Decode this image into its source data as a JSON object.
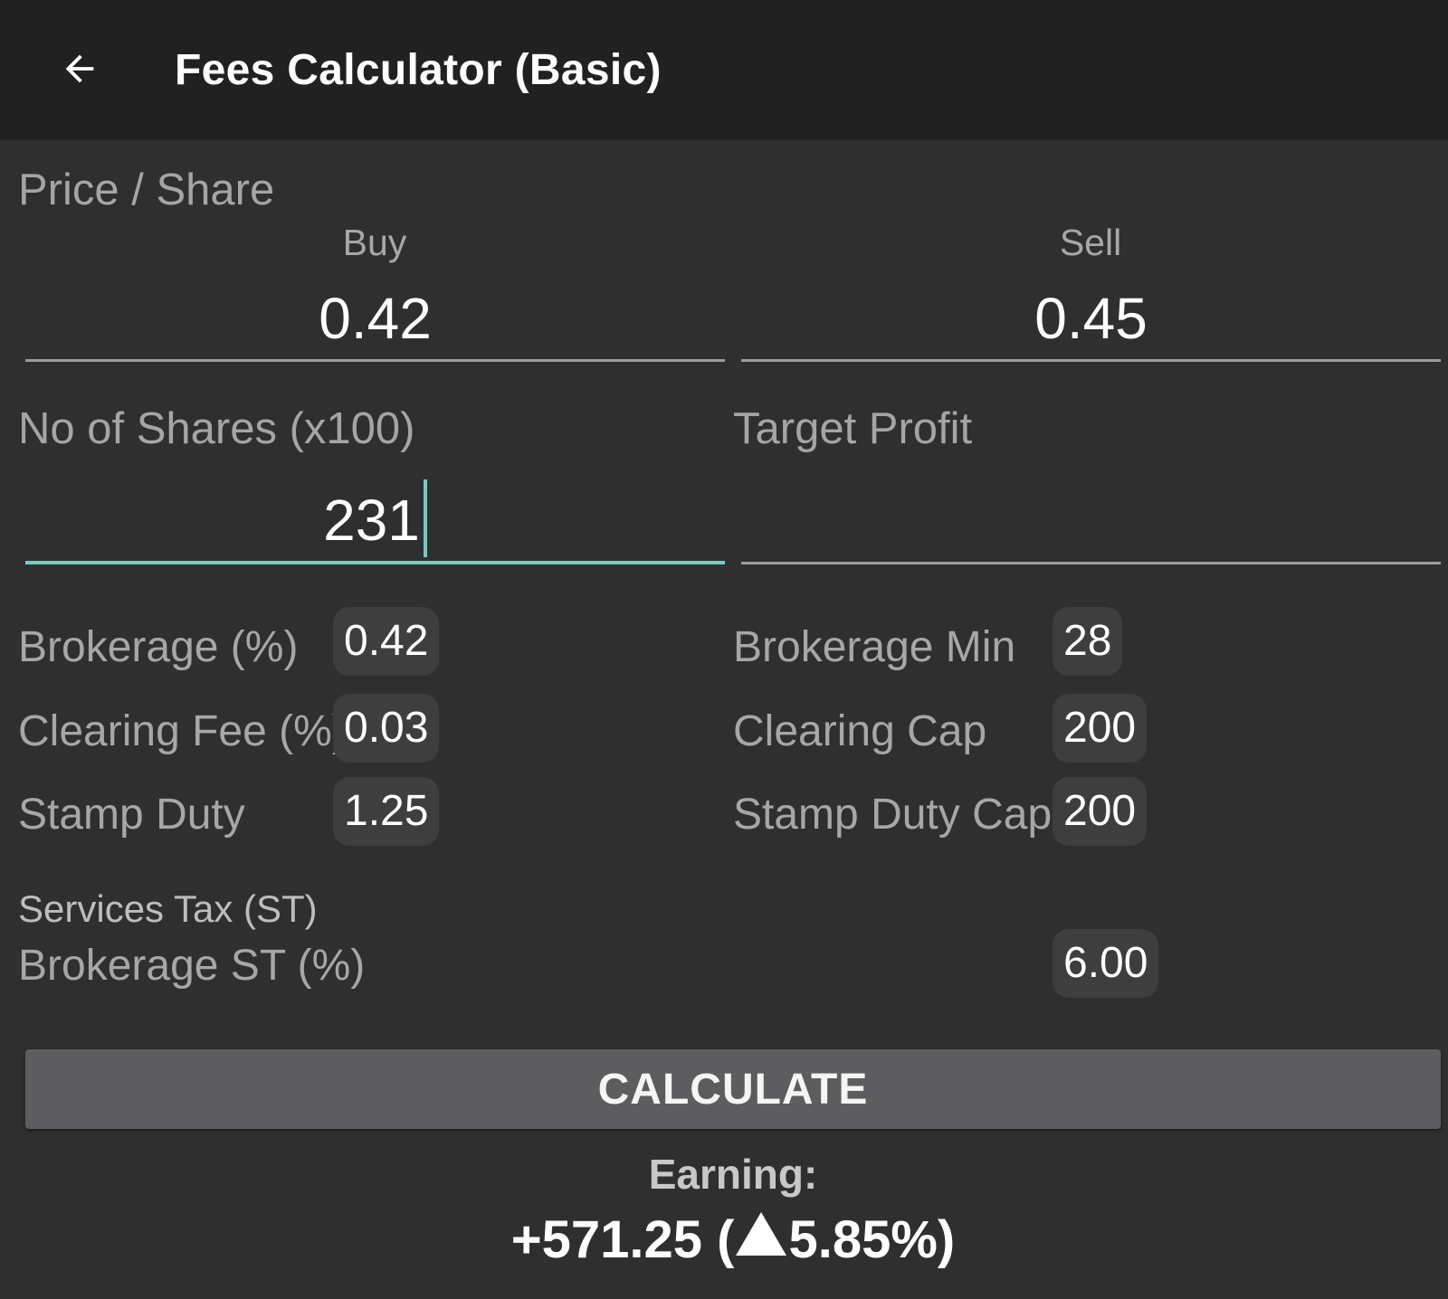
{
  "header": {
    "title": "Fees Calculator (Basic)",
    "back_icon": "arrow-left-icon"
  },
  "price_share": {
    "label": "Price / Share",
    "buy_label": "Buy",
    "buy_value": "0.42",
    "sell_label": "Sell",
    "sell_value": "0.45"
  },
  "shares": {
    "label": "No of Shares (x100)",
    "value": "231"
  },
  "target_profit": {
    "label": "Target Profit",
    "value": ""
  },
  "fees": {
    "brokerage_pct": {
      "label": "Brokerage (%)",
      "value": "0.42"
    },
    "clearing_fee_pct": {
      "label": "Clearing Fee (%)",
      "value": "0.03"
    },
    "stamp_duty": {
      "label": "Stamp Duty",
      "value": "1.25"
    },
    "brokerage_min": {
      "label": "Brokerage Min",
      "value": "28"
    },
    "clearing_cap": {
      "label": "Clearing Cap",
      "value": "200"
    },
    "stamp_duty_cap": {
      "label": "Stamp Duty Cap",
      "value": "200"
    }
  },
  "services_tax": {
    "heading": "Services Tax (ST)",
    "brokerage_st": {
      "label": "Brokerage ST (%)",
      "value": "6.00"
    }
  },
  "calculate_label": "CALCULATE",
  "result": {
    "label": "Earning:",
    "amount": "+571.25",
    "percent": "5.85%",
    "direction_icon": "up-triangle-icon"
  },
  "colors": {
    "background": "#2f2f2f",
    "appbar": "#212121",
    "accent": "#79c9bf",
    "button": "#5d5d5f"
  }
}
